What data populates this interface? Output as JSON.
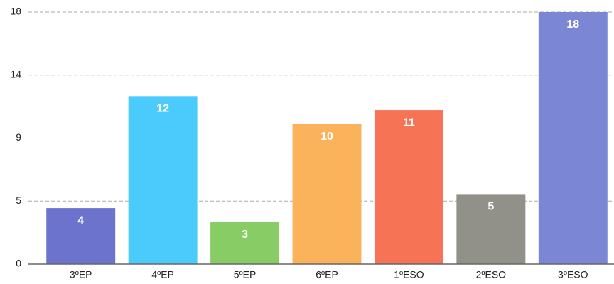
{
  "chart_data": {
    "type": "bar",
    "categories": [
      "3ºEP",
      "4ºEP",
      "5ºEP",
      "6ºEP",
      "1ºESO",
      "2ºESO",
      "3ºESO"
    ],
    "values": [
      4,
      12,
      3,
      10,
      11,
      5,
      18
    ],
    "colors": [
      "#6b73cc",
      "#4bcbfb",
      "#88cc66",
      "#fbb35b",
      "#f77356",
      "#919189",
      "#7b86d4"
    ],
    "ylim": [
      0,
      18
    ],
    "yticks": [
      0,
      {
        "value": 4.5,
        "label": "5"
      },
      9,
      {
        "value": 13.5,
        "label": "14"
      },
      18
    ],
    "grid": true
  }
}
